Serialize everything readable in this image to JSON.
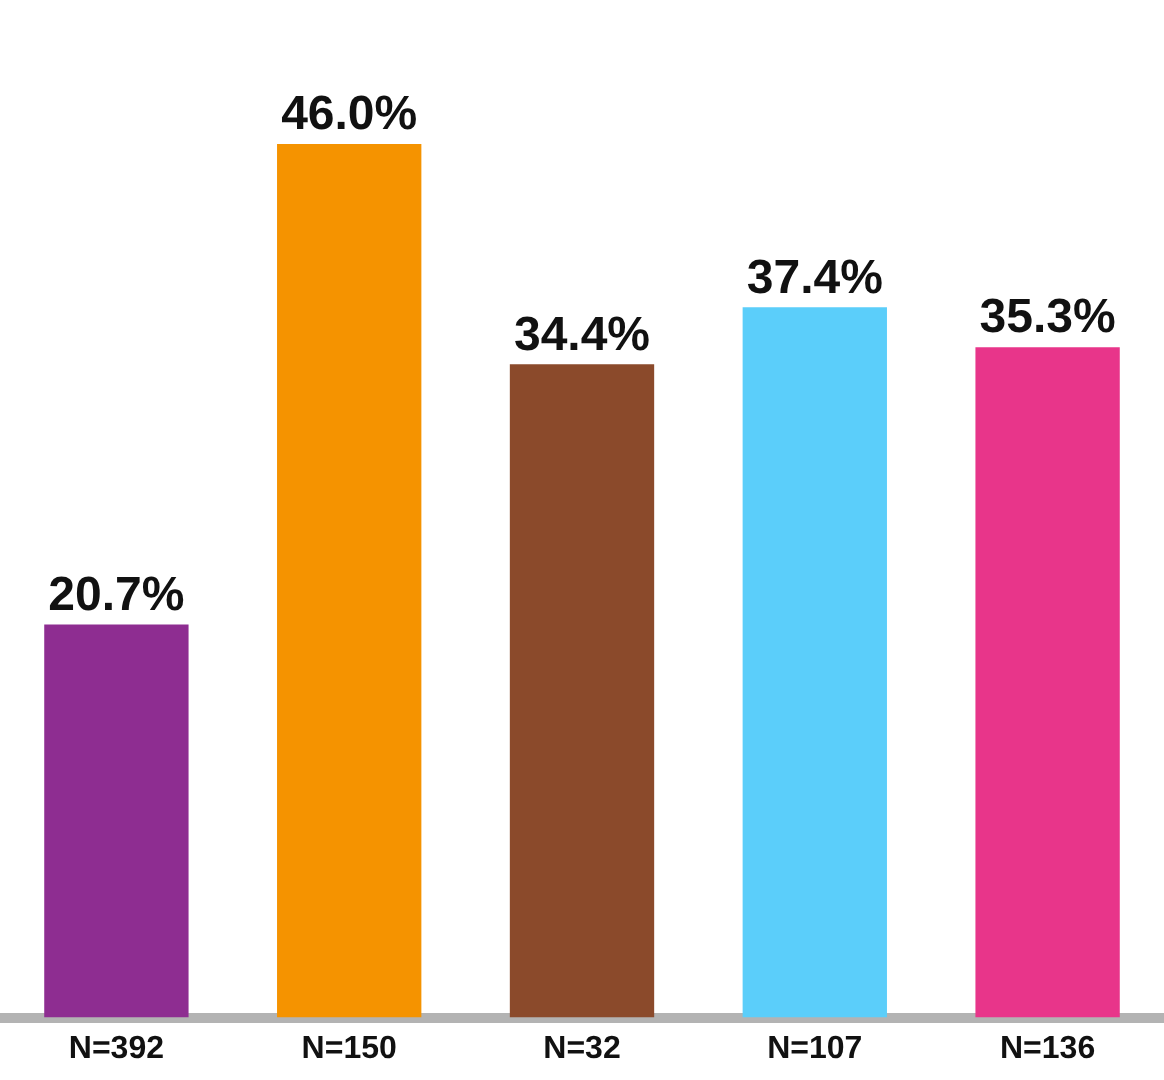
{
  "chart_data": {
    "type": "bar",
    "categories": [
      "N=392",
      "N=150",
      "N=32",
      "N=107",
      "N=136"
    ],
    "values": [
      20.7,
      46.0,
      34.4,
      37.4,
      35.3
    ],
    "colors": [
      "#8e2d91",
      "#f59300",
      "#8b4a2b",
      "#5bcefa",
      "#e8358a"
    ],
    "value_labels": [
      "20.7%",
      "46.0%",
      "34.4%",
      "37.4%",
      "35.3%"
    ],
    "grid": false,
    "legend": false
  }
}
